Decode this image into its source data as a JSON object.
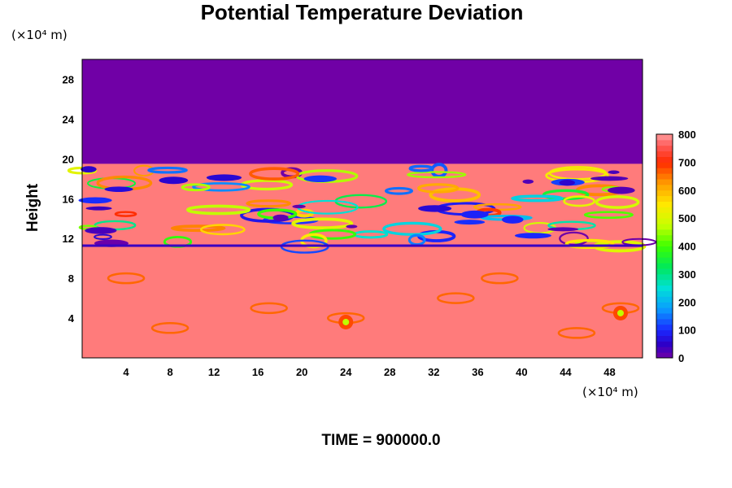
{
  "chart_data": {
    "type": "heatmap",
    "title": "Potential Temperature Deviation",
    "ylabel": "Height",
    "y_unit": "(×10⁴ m)",
    "x_unit": "(×10⁴ m)",
    "xlim": [
      0,
      51
    ],
    "ylim": [
      0,
      30
    ],
    "x_ticks": [
      4,
      8,
      12,
      16,
      20,
      24,
      28,
      32,
      36,
      40,
      44,
      48
    ],
    "y_ticks": [
      4,
      8,
      12,
      16,
      20,
      24,
      28
    ],
    "colorbar": {
      "range": [
        0,
        800
      ],
      "ticks": [
        0,
        100,
        200,
        300,
        400,
        500,
        600,
        700,
        800
      ]
    },
    "regions": [
      {
        "y_from": 19.5,
        "y_to": 30,
        "value": 0
      },
      {
        "y_from": 0,
        "y_to": 19.5,
        "value": 780
      }
    ],
    "grid": false,
    "footer": "TIME = 900000.0"
  }
}
